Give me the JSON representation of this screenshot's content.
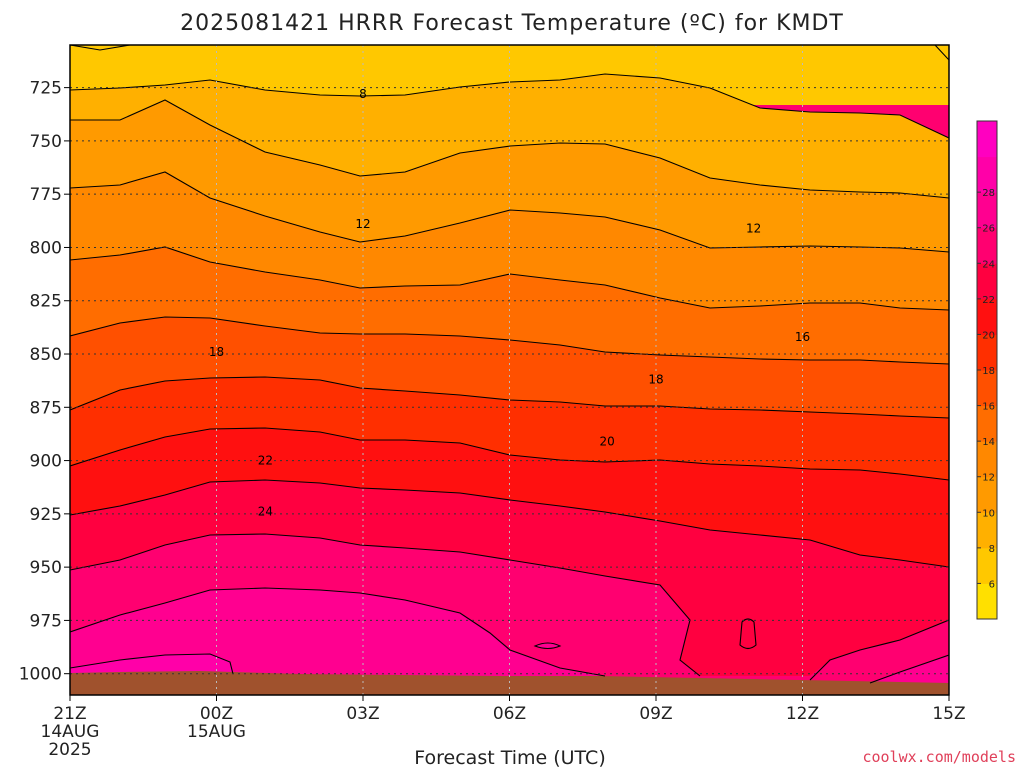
{
  "chart_data": {
    "type": "contour",
    "title": "2025081421 HRRR Forecast Temperature (ºC) for KMDT",
    "xlabel": "Forecast Time (UTC)",
    "ylabel": "",
    "x_ticks": [
      {
        "label": "21Z",
        "sub1": "14AUG",
        "sub2": "2025",
        "hour": 0
      },
      {
        "label": "00Z",
        "sub1": "15AUG",
        "sub2": "",
        "hour": 3
      },
      {
        "label": "03Z",
        "sub1": "",
        "sub2": "",
        "hour": 6
      },
      {
        "label": "06Z",
        "sub1": "",
        "sub2": "",
        "hour": 9
      },
      {
        "label": "09Z",
        "sub1": "",
        "sub2": "",
        "hour": 12
      },
      {
        "label": "12Z",
        "sub1": "",
        "sub2": "",
        "hour": 15
      },
      {
        "label": "15Z",
        "sub1": "",
        "sub2": "",
        "hour": 18
      }
    ],
    "xlim": [
      0,
      18
    ],
    "y_ticks": [
      725,
      750,
      775,
      800,
      825,
      850,
      875,
      900,
      925,
      950,
      975,
      1000
    ],
    "ylim": [
      1010,
      705
    ],
    "y_reversed": true,
    "grid": true,
    "contour_interval": 2,
    "contour_labels": [
      {
        "value": "8",
        "hour": 6.0,
        "p": 728
      },
      {
        "value": "12",
        "hour": 6.0,
        "p": 789
      },
      {
        "value": "12",
        "hour": 14.0,
        "p": 791
      },
      {
        "value": "16",
        "hour": 15.0,
        "p": 842
      },
      {
        "value": "18",
        "hour": 3.0,
        "p": 849
      },
      {
        "value": "18",
        "hour": 12.0,
        "p": 862
      },
      {
        "value": "20",
        "hour": 11.0,
        "p": 891
      },
      {
        "value": "22",
        "hour": 4.0,
        "p": 900
      },
      {
        "value": "24",
        "hour": 4.0,
        "p": 924
      }
    ],
    "colorbar": {
      "ticks": [
        "6",
        "8",
        "10",
        "12",
        "14",
        "16",
        "18",
        "20",
        "22",
        "24",
        "26",
        "28"
      ],
      "colors": [
        "#ffe000",
        "#ffc800",
        "#ffb000",
        "#ff9a00",
        "#ff8800",
        "#ff6d00",
        "#ff5000",
        "#ff2f00",
        "#ff1010",
        "#ff0040",
        "#ff0070",
        "#ff0090",
        "#ff00a8",
        "#ff00c0"
      ]
    }
  },
  "credit": "coolwx.com/models"
}
